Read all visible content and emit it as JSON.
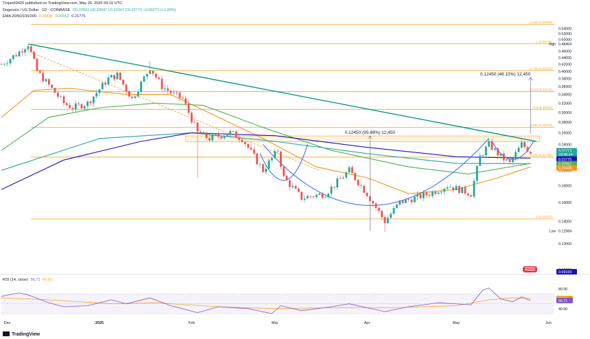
{
  "header": {
    "published": "Trojan69420 published on TradingView.com, May 26, 2025 09:10 UTC",
    "symbol": "Dogecoin / US Dollar · 1D · COINBASE",
    "ohlc": "O0.22501 H0.23047 L0.22347 C0.22773 +0.00271 (+1.20%)",
    "ema_label": "EMA 20/50/100/200",
    "ema_values": [
      "0.20436",
      "0.20952",
      "0.21775"
    ]
  },
  "rsi_legend": {
    "label": "RSI (14, close)",
    "value1": "56.71",
    "value2": "60.69"
  },
  "footer": {
    "brand": "TradingView"
  },
  "colors": {
    "up": "#26a69a",
    "down": "#ef5350",
    "trendline": "#089981",
    "ema_orange": "#f7931a",
    "ema_green": "#4caf50",
    "ema_teal": "#26a69a",
    "ema_navy": "#1e0fbe",
    "fib": "#f7a21b",
    "cup": "#2962ff",
    "rsi": "#7e57c2"
  },
  "chart_data": {
    "type": "candlestick",
    "title": "Dogecoin / US Dollar · 1D · COINBASE",
    "y_scale": "log",
    "ylim": [
      0.098,
      0.57
    ],
    "x_range": [
      "2024-11-29",
      "2025-06-03"
    ],
    "yticks": [
      "0.54000",
      "0.52000",
      "0.50000",
      "0.48000",
      "0.46000",
      "0.44000",
      "0.42000",
      "0.40000",
      "0.38000",
      "0.36000",
      "0.34000",
      "0.32000",
      "0.30000",
      "0.28000",
      "0.26000",
      "0.24000",
      "0.22000",
      "0.20000",
      "0.18000",
      "0.16000",
      "0.14000",
      "0.12000",
      "0.10000"
    ],
    "xticks": [
      {
        "date": "2024-12-01",
        "label": "Dec",
        "bold": false
      },
      {
        "date": "2025-01-01",
        "label": "2025",
        "bold": true
      },
      {
        "date": "2025-02-01",
        "label": "Feb",
        "bold": false
      },
      {
        "date": "2025-03-01",
        "label": "Mar",
        "bold": false
      },
      {
        "date": "2025-04-01",
        "label": "Apr",
        "bold": false
      },
      {
        "date": "2025-05-01",
        "label": "May",
        "bold": false
      },
      {
        "date": "2025-06-01",
        "label": "Jun",
        "bold": false
      }
    ],
    "keypoints": [
      [
        "2024-11-29",
        0.42
      ],
      [
        "2024-12-04",
        0.45
      ],
      [
        "2024-12-08",
        0.484
      ],
      [
        "2024-12-11",
        0.4
      ],
      [
        "2024-12-20",
        0.32
      ],
      [
        "2024-12-23",
        0.31
      ],
      [
        "2024-12-28",
        0.32
      ],
      [
        "2025-01-04",
        0.38
      ],
      [
        "2025-01-07",
        0.39
      ],
      [
        "2025-01-12",
        0.33
      ],
      [
        "2025-01-18",
        0.41
      ],
      [
        "2025-01-22",
        0.36
      ],
      [
        "2025-01-26",
        0.34
      ],
      [
        "2025-01-29",
        0.33
      ],
      [
        "2025-02-03",
        0.26
      ],
      [
        "2025-02-07",
        0.25
      ],
      [
        "2025-02-14",
        0.26
      ],
      [
        "2025-02-18",
        0.25
      ],
      [
        "2025-02-25",
        0.2
      ],
      [
        "2025-03-02",
        0.23
      ],
      [
        "2025-03-04",
        0.19
      ],
      [
        "2025-03-10",
        0.165
      ],
      [
        "2025-03-18",
        0.17
      ],
      [
        "2025-03-26",
        0.2
      ],
      [
        "2025-04-01",
        0.17
      ],
      [
        "2025-04-07",
        0.14
      ],
      [
        "2025-04-12",
        0.16
      ],
      [
        "2025-04-22",
        0.17
      ],
      [
        "2025-04-28",
        0.18
      ],
      [
        "2025-05-06",
        0.17
      ],
      [
        "2025-05-09",
        0.22
      ],
      [
        "2025-05-12",
        0.24
      ],
      [
        "2025-05-16",
        0.22
      ],
      [
        "2025-05-19",
        0.21
      ],
      [
        "2025-05-23",
        0.24
      ],
      [
        "2025-05-26",
        0.2277
      ]
    ],
    "extremes": [
      {
        "date": "2024-12-08",
        "high": 0.484
      },
      {
        "date": "2025-01-18",
        "high": 0.43
      },
      {
        "date": "2025-02-03",
        "low": 0.19
      },
      {
        "date": "2025-04-07",
        "low": 0.13
      }
    ],
    "series": [
      {
        "name": "EMA 20",
        "color": "#f7931a",
        "points": [
          [
            "2024-11-29",
            0.29
          ],
          [
            "2024-12-10",
            0.35
          ],
          [
            "2024-12-22",
            0.355
          ],
          [
            "2025-01-10",
            0.34
          ],
          [
            "2025-01-25",
            0.34
          ],
          [
            "2025-02-10",
            0.29
          ],
          [
            "2025-02-25",
            0.25
          ],
          [
            "2025-03-15",
            0.205
          ],
          [
            "2025-04-01",
            0.19
          ],
          [
            "2025-04-15",
            0.17
          ],
          [
            "2025-05-01",
            0.175
          ],
          [
            "2025-05-15",
            0.19
          ],
          [
            "2025-05-26",
            0.205
          ]
        ]
      },
      {
        "name": "EMA 50",
        "color": "#4caf50",
        "points": [
          [
            "2024-11-29",
            0.23
          ],
          [
            "2024-12-15",
            0.29
          ],
          [
            "2025-01-01",
            0.31
          ],
          [
            "2025-01-20",
            0.32
          ],
          [
            "2025-02-05",
            0.315
          ],
          [
            "2025-02-25",
            0.27
          ],
          [
            "2025-03-20",
            0.23
          ],
          [
            "2025-04-15",
            0.205
          ],
          [
            "2025-05-05",
            0.195
          ],
          [
            "2025-05-26",
            0.21
          ]
        ]
      },
      {
        "name": "EMA 100",
        "color": "#26a69a",
        "points": [
          [
            "2024-11-29",
            0.2
          ],
          [
            "2025-01-01",
            0.25
          ],
          [
            "2025-02-01",
            0.26
          ],
          [
            "2025-03-01",
            0.245
          ],
          [
            "2025-04-01",
            0.225
          ],
          [
            "2025-05-01",
            0.21
          ],
          [
            "2025-05-26",
            0.2095
          ]
        ]
      },
      {
        "name": "EMA 200",
        "color": "#1e0fbe",
        "points": [
          [
            "2024-11-29",
            0.175
          ],
          [
            "2024-12-20",
            0.215
          ],
          [
            "2025-01-15",
            0.245
          ],
          [
            "2025-02-01",
            0.26
          ],
          [
            "2025-03-01",
            0.255
          ],
          [
            "2025-04-01",
            0.235
          ],
          [
            "2025-05-01",
            0.22
          ],
          [
            "2025-05-26",
            0.2178
          ]
        ]
      }
    ],
    "trendline": [
      [
        "2024-12-08",
        0.484
      ],
      [
        "2025-05-28",
        0.245
      ]
    ],
    "dashed_line": [
      [
        "2024-12-08",
        0.46
      ],
      [
        "2025-03-16",
        0.2
      ]
    ],
    "fib_levels": [
      {
        "price": 0.5555,
        "label": "1.618 (0.55555)"
      },
      {
        "price": 0.4845,
        "label": "1 (0.48744)"
      },
      {
        "price": 0.402,
        "label": "0.786 (0.40182)"
      },
      {
        "price": 0.347,
        "label": "0.618 (0.34740)"
      },
      {
        "price": 0.3065,
        "label": "0.5 (0.30622)"
      },
      {
        "price": 0.2705,
        "label": "0.382 (0.26575)"
      },
      {
        "price": 0.2195,
        "label": "0.236 (0.21765)"
      },
      {
        "price": 0.1425,
        "label": "0 (0.14237)"
      }
    ],
    "resistance_zone": [
      0.2445,
      0.2545
    ],
    "measurements": [
      {
        "text": "0.12450 (95.88%) 12,450",
        "date": "2025-04-02",
        "from": 0.131,
        "to": 0.2545
      },
      {
        "text": "0.12450 (48.15%) 12,450",
        "date": "2025-05-26",
        "from": 0.258,
        "to": 0.383
      }
    ],
    "price_labels": [
      {
        "text": "0.48464",
        "price": 0.48464,
        "bg": "#ffffff",
        "fg": "#131722",
        "tag": "High"
      },
      {
        "text": "0.22773",
        "price": 0.2295,
        "bg": "#26a69a",
        "fg": "#ffffff"
      },
      {
        "text": "18:49:24",
        "price": 0.2237,
        "bg": "#26a69a",
        "fg": "#ffffff"
      },
      {
        "text": "0.21775",
        "price": 0.2165,
        "bg": "#1e0fbe",
        "fg": "#ffffff"
      },
      {
        "text": "0.20952",
        "price": 0.2095,
        "bg": "#4caf50",
        "fg": "#ffffff"
      },
      {
        "text": "0.20436",
        "price": 0.2035,
        "bg": "#f7931a",
        "fg": "#ffffff"
      },
      {
        "text": "0.12984",
        "price": 0.131,
        "bg": "#ffffff",
        "fg": "#131722",
        "tag": "Low"
      },
      {
        "text": "0.09169",
        "price": 0.0985,
        "bg": "#1e0fbe",
        "fg": "#ffffff"
      }
    ],
    "rsi": {
      "yticks": [
        "80.00",
        "60.00",
        "40.00"
      ],
      "ylim": [
        30,
        90
      ],
      "band": [
        30,
        70
      ],
      "labels": [
        {
          "text": "60.69",
          "value": 60.69,
          "bg": "#f7a21b"
        },
        {
          "text": "56.71",
          "value": 56.71,
          "bg": "#7e57c2"
        }
      ],
      "rsi_series": [
        [
          "2024-11-29",
          65
        ],
        [
          "2024-12-05",
          72
        ],
        [
          "2024-12-08",
          68
        ],
        [
          "2024-12-15",
          52
        ],
        [
          "2024-12-20",
          44
        ],
        [
          "2024-12-28",
          46
        ],
        [
          "2025-01-05",
          58
        ],
        [
          "2025-01-10",
          50
        ],
        [
          "2025-01-18",
          62
        ],
        [
          "2025-01-25",
          46
        ],
        [
          "2025-02-03",
          32
        ],
        [
          "2025-02-10",
          44
        ],
        [
          "2025-02-20",
          40
        ],
        [
          "2025-02-28",
          30
        ],
        [
          "2025-03-03",
          46
        ],
        [
          "2025-03-10",
          36
        ],
        [
          "2025-03-20",
          44
        ],
        [
          "2025-03-26",
          50
        ],
        [
          "2025-04-07",
          34
        ],
        [
          "2025-04-15",
          44
        ],
        [
          "2025-04-25",
          52
        ],
        [
          "2025-05-06",
          48
        ],
        [
          "2025-05-10",
          78
        ],
        [
          "2025-05-12",
          82
        ],
        [
          "2025-05-16",
          60
        ],
        [
          "2025-05-20",
          54
        ],
        [
          "2025-05-23",
          64
        ],
        [
          "2025-05-26",
          56.71
        ]
      ],
      "ma_series": [
        [
          "2024-11-29",
          62
        ],
        [
          "2024-12-15",
          58
        ],
        [
          "2025-01-05",
          50
        ],
        [
          "2025-01-20",
          52
        ],
        [
          "2025-02-10",
          44
        ],
        [
          "2025-03-01",
          40
        ],
        [
          "2025-03-20",
          42
        ],
        [
          "2025-04-10",
          42
        ],
        [
          "2025-05-01",
          46
        ],
        [
          "2025-05-12",
          58
        ],
        [
          "2025-05-20",
          62
        ],
        [
          "2025-05-26",
          60.69
        ]
      ]
    }
  }
}
